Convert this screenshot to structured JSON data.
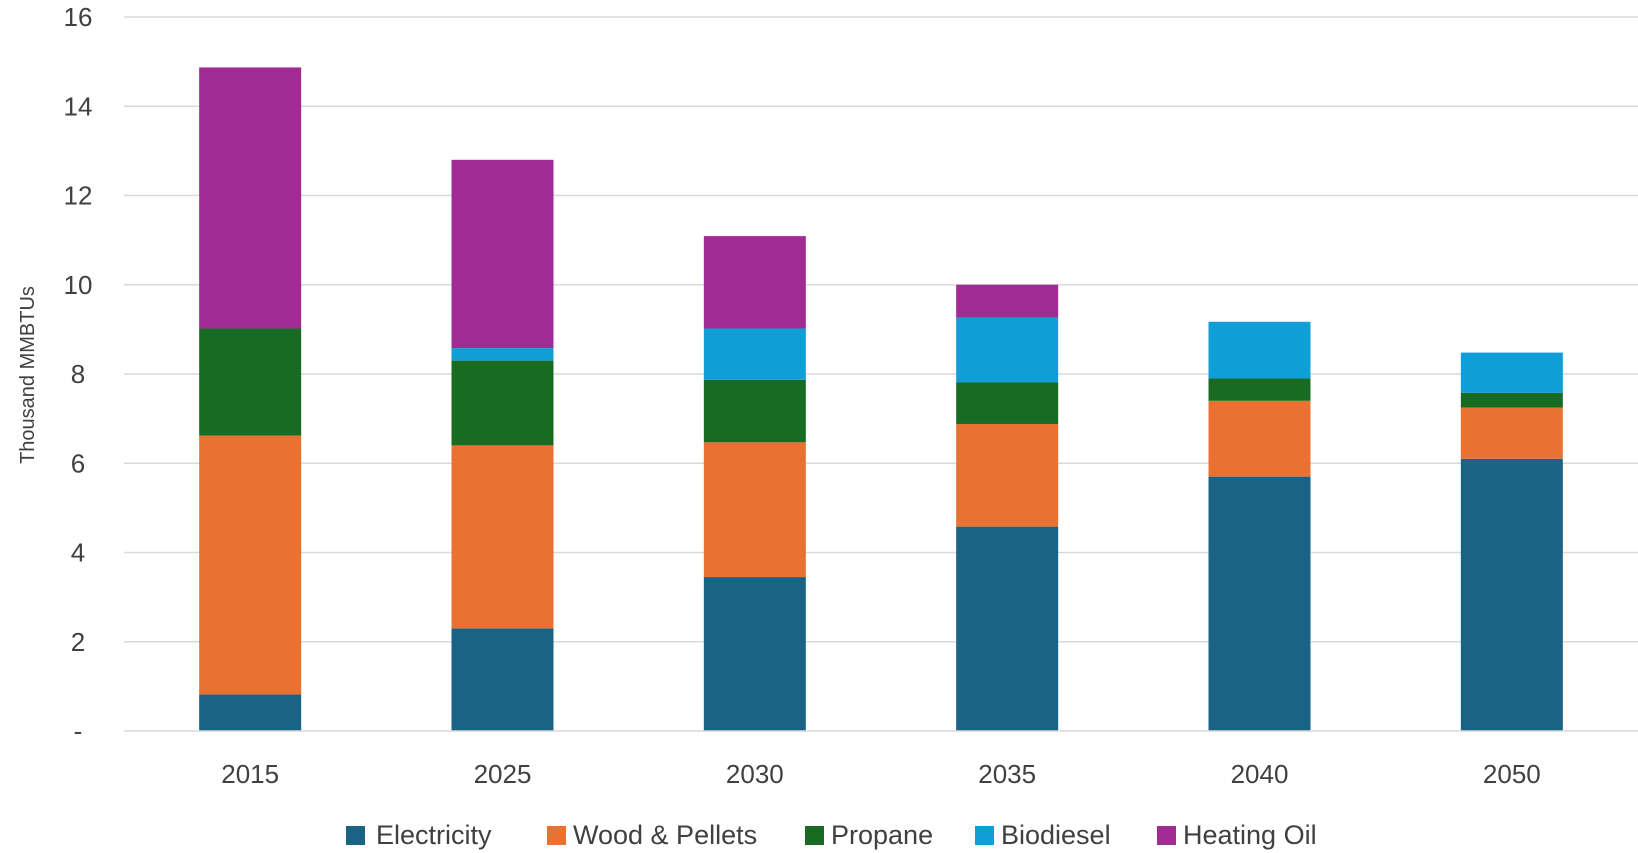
{
  "chart_data": {
    "type": "bar",
    "stacked": true,
    "categories": [
      "2015",
      "2025",
      "2030",
      "2035",
      "2040",
      "2050"
    ],
    "ylabel": "Thousand MMBTUs",
    "ylim": [
      0,
      16
    ],
    "yticks": [
      {
        "value": 0,
        "label": "-"
      },
      {
        "value": 2,
        "label": "2"
      },
      {
        "value": 4,
        "label": "4"
      },
      {
        "value": 6,
        "label": "6"
      },
      {
        "value": 8,
        "label": "8"
      },
      {
        "value": 10,
        "label": "10"
      },
      {
        "value": 12,
        "label": "12"
      },
      {
        "value": 14,
        "label": "14"
      },
      {
        "value": 16,
        "label": "16"
      }
    ],
    "grid": true,
    "legend_position": "bottom",
    "series": [
      {
        "name": "Electricity",
        "color": "#1a6384",
        "values": [
          0.82,
          2.3,
          3.45,
          4.58,
          5.7,
          6.1
        ]
      },
      {
        "name": "Wood & Pellets",
        "color": "#e97132",
        "values": [
          5.8,
          4.1,
          3.02,
          2.3,
          1.7,
          1.15
        ]
      },
      {
        "name": "Propane",
        "color": "#196b24",
        "values": [
          2.4,
          1.9,
          1.4,
          0.93,
          0.5,
          0.33
        ]
      },
      {
        "name": "Biodiesel",
        "color": "#0f9ed5",
        "values": [
          0.0,
          0.28,
          1.15,
          1.45,
          1.27,
          0.9
        ]
      },
      {
        "name": "Heating Oil",
        "color": "#a02b93",
        "values": [
          5.85,
          4.22,
          2.07,
          0.74,
          0.0,
          0.0
        ]
      }
    ]
  }
}
